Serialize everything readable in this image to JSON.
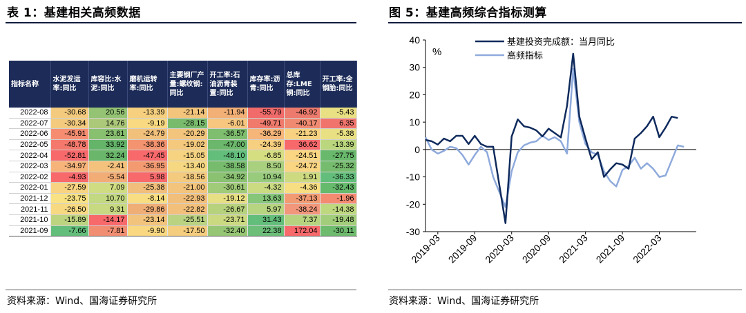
{
  "left": {
    "title": "表 1：基建相关高频数据",
    "source": "资料来源：Wind、国海证券研究所",
    "table": {
      "headers": [
        "指标名称",
        "水泥发运率:同比",
        "库容比:水泥:同比",
        "磨机运转率:同比",
        "主要钢厂产量:螺纹钢:同比",
        "开工率:石油沥青装置:同比",
        "库存率:沥青:同比",
        "总库存:LME铜:同比",
        "开工率:全钢胎:同比"
      ],
      "rows": [
        {
          "date": "2022-08",
          "values": [
            "-30.68",
            "20.56",
            "-13.39",
            "-21.14",
            "-11.94",
            "-55.79",
            "-46.92",
            "-5.43"
          ],
          "colors": [
            "#f4cb7e",
            "#93c373",
            "#f6d07f",
            "#f3c47c",
            "#f2af76",
            "#f06b6a",
            "#ec7b6d",
            "#e9e083"
          ]
        },
        {
          "date": "2022-07",
          "values": [
            "-30.34",
            "14.76",
            "-9.19",
            "-28.15",
            "-6.01",
            "-49.71",
            "-40.17",
            "6.35"
          ],
          "colors": [
            "#f4cb7e",
            "#acc97a",
            "#f9d981",
            "#79bb6d",
            "#f7c67f",
            "#f07b6d",
            "#f08a70",
            "#f0746c"
          ]
        },
        {
          "date": "2022-06",
          "values": [
            "-45.91",
            "23.61",
            "-24.79",
            "-20.29",
            "-36.57",
            "-36.29",
            "-21.23",
            "-5.38"
          ],
          "colors": [
            "#f68d71",
            "#89c070",
            "#f1c07b",
            "#f3c57c",
            "#7ebe6e",
            "#f6b579",
            "#f8d280",
            "#e9e083"
          ]
        },
        {
          "date": "2022-05",
          "values": [
            "-48.78",
            "33.92",
            "-38.36",
            "-19.02",
            "-47.00",
            "-24.39",
            "36.62",
            "-13.39"
          ],
          "colors": [
            "#f4796c",
            "#64b469",
            "#f3936f",
            "#f4c97d",
            "#6bb76b",
            "#f7cf80",
            "#f8696b",
            "#bad77e"
          ]
        },
        {
          "date": "2022-04",
          "values": [
            "-52.81",
            "32.24",
            "-47.45",
            "-15.05",
            "-48.10",
            "-6.85",
            "-24.51",
            "-27.75"
          ],
          "colors": [
            "#f8696b",
            "#6ab66a",
            "#f8696b",
            "#f6d381",
            "#63be7b",
            "#d6de82",
            "#fad582",
            "#69b96c"
          ]
        },
        {
          "date": "2022-03",
          "values": [
            "-34.97",
            "-2.41",
            "-36.95",
            "-13.40",
            "-38.58",
            "8.50",
            "-24.72",
            "-25.32"
          ],
          "colors": [
            "#f6b37a",
            "#f4c27d",
            "#f49a71",
            "#f6d782",
            "#77bc6d",
            "#a8d07e",
            "#fad582",
            "#76bc6e"
          ]
        },
        {
          "date": "2022-02",
          "values": [
            "-4.93",
            "-5.54",
            "5.98",
            "-18.56",
            "-34.92",
            "10.94",
            "1.91",
            "-36.33"
          ],
          "colors": [
            "#f8696b",
            "#f2ac76",
            "#f8696b",
            "#f4ca7e",
            "#8ac271",
            "#98cb7c",
            "#cdda80",
            "#63be7b"
          ]
        },
        {
          "date": "2022-01",
          "values": [
            "-27.59",
            "7.09",
            "-25.38",
            "-21.00",
            "-30.61",
            "-4.32",
            "-4.36",
            "-32.43"
          ],
          "colors": [
            "#f8d482",
            "#d0dc82",
            "#f1be7b",
            "#f3c47c",
            "#a0cb78",
            "#cbdb82",
            "#f8de82",
            "#66ba6c"
          ]
        },
        {
          "date": "2021-12",
          "values": [
            "-23.75",
            "10.70",
            "-8.14",
            "-22.93",
            "-19.12",
            "13.63",
            "-37.13",
            "-1.96"
          ],
          "colors": [
            "#f8e283",
            "#c2d881",
            "#f9dd82",
            "#f2bf7b",
            "#e6df83",
            "#85c679",
            "#f29b73",
            "#f48a70"
          ]
        },
        {
          "date": "2021-11",
          "values": [
            "-26.50",
            "9.31",
            "-29.86",
            "-22.82",
            "-26.67",
            "5.97",
            "-38.24",
            "-14.38"
          ],
          "colors": [
            "#f7d982",
            "#c7d981",
            "#f0ae77",
            "#f2c07b",
            "#b7d27d",
            "#b7d480",
            "#f2977b",
            "#bed87f"
          ]
        },
        {
          "date": "2021-10",
          "values": [
            "-15.89",
            "-14.17",
            "-23.14",
            "-25.51",
            "-23.71",
            "31.43",
            "7.37",
            "-19.48"
          ],
          "colors": [
            "#bcd480",
            "#f8696b",
            "#f2c37c",
            "#bad383",
            "#cbd981",
            "#63be7b",
            "#b6d47f",
            "#a2cd7a"
          ]
        },
        {
          "date": "2021-09",
          "values": [
            "-7.66",
            "-7.81",
            "-9.90",
            "-17.50",
            "-32.40",
            "22.38",
            "172.04",
            "-30.11"
          ],
          "colors": [
            "#63be7b",
            "#f18e72",
            "#f9d881",
            "#f5cd7e",
            "#96c674",
            "#6cbe79",
            "#f8696b",
            "#6ebb6e"
          ]
        }
      ]
    }
  },
  "right": {
    "title": "图 5：基建高频综合指标测算",
    "source": "资料来源：Wind、国海证券研究所"
  },
  "chart_data": {
    "type": "line",
    "unit_label": "%",
    "ylim": [
      -30,
      40
    ],
    "yticks": [
      -30,
      -20,
      -10,
      0,
      10,
      20,
      30,
      40
    ],
    "xlim": [
      "2019-01",
      "2022-09"
    ],
    "xtick_labels": [
      "2019-03",
      "2019-09",
      "2020-03",
      "2020-09",
      "2021-03",
      "2021-09",
      "2022-03"
    ],
    "grid": false,
    "legend_position": "top",
    "series": [
      {
        "name": "基建投资完成额：当月同比",
        "color": "#0f2a5c",
        "points": [
          [
            "2019-01",
            3.5
          ],
          [
            "2019-02",
            3.0
          ],
          [
            "2019-03",
            1.8
          ],
          [
            "2019-04",
            4.0
          ],
          [
            "2019-05",
            3.0
          ],
          [
            "2019-06",
            5.0
          ],
          [
            "2019-07",
            5.0
          ],
          [
            "2019-08",
            2.0
          ],
          [
            "2019-09",
            5.0
          ],
          [
            "2019-10",
            2.0
          ],
          [
            "2019-11",
            1.0
          ],
          [
            "2019-12",
            1.0
          ],
          [
            "2020-02",
            -26.9
          ],
          [
            "2020-03",
            4.7
          ],
          [
            "2020-04",
            11.0
          ],
          [
            "2020-05",
            8.5
          ],
          [
            "2020-06",
            8.0
          ],
          [
            "2020-07",
            7.0
          ],
          [
            "2020-08",
            4.8
          ],
          [
            "2020-09",
            7.6
          ],
          [
            "2020-10",
            6.0
          ],
          [
            "2020-11",
            4.4
          ],
          [
            "2020-12",
            16.0
          ],
          [
            "2021-01",
            35.0
          ],
          [
            "2021-02",
            12.0
          ],
          [
            "2021-03",
            4.0
          ],
          [
            "2021-04",
            -3.5
          ],
          [
            "2021-05",
            -1.0
          ],
          [
            "2021-06",
            -10.0
          ],
          [
            "2021-07",
            -7.3
          ],
          [
            "2021-08",
            -5.0
          ],
          [
            "2021-09",
            -5.5
          ],
          [
            "2021-10",
            -7.0
          ],
          [
            "2021-11",
            4.0
          ],
          [
            "2021-12",
            6.0
          ],
          [
            "2022-01",
            8.5
          ],
          [
            "2022-02",
            12.0
          ],
          [
            "2022-03",
            4.5
          ],
          [
            "2022-04",
            8.0
          ],
          [
            "2022-05",
            12.0
          ],
          [
            "2022-06",
            11.5
          ]
        ]
      },
      {
        "name": "高频指标",
        "color": "#8faadc",
        "points": [
          [
            "2019-01",
            4.5
          ],
          [
            "2019-02",
            0.0
          ],
          [
            "2019-03",
            -1.5
          ],
          [
            "2019-04",
            -0.5
          ],
          [
            "2019-05",
            1.0
          ],
          [
            "2019-06",
            0.5
          ],
          [
            "2019-07",
            -2.0
          ],
          [
            "2019-08",
            -5.5
          ],
          [
            "2019-09",
            -2.0
          ],
          [
            "2019-10",
            1.0
          ],
          [
            "2019-11",
            -1.0
          ],
          [
            "2019-12",
            -10.0
          ],
          [
            "2020-02",
            -21.0
          ],
          [
            "2020-03",
            -8.0
          ],
          [
            "2020-04",
            -1.0
          ],
          [
            "2020-05",
            1.5
          ],
          [
            "2020-06",
            2.5
          ],
          [
            "2020-07",
            3.0
          ],
          [
            "2020-08",
            5.0
          ],
          [
            "2020-09",
            3.5
          ],
          [
            "2020-10",
            4.5
          ],
          [
            "2020-11",
            3.0
          ],
          [
            "2020-12",
            -1.5
          ],
          [
            "2021-01",
            29.5
          ],
          [
            "2021-02",
            10.0
          ],
          [
            "2021-03",
            2.0
          ],
          [
            "2021-04",
            -1.0
          ],
          [
            "2021-05",
            -2.0
          ],
          [
            "2021-06",
            -8.0
          ],
          [
            "2021-07",
            -11.5
          ],
          [
            "2021-08",
            -13.5
          ],
          [
            "2021-09",
            -7.5
          ],
          [
            "2021-10",
            -6.0
          ],
          [
            "2021-11",
            -3.0
          ],
          [
            "2021-12",
            -7.0
          ],
          [
            "2022-01",
            -5.0
          ],
          [
            "2022-02",
            -7.0
          ],
          [
            "2022-03",
            -10.0
          ],
          [
            "2022-04",
            -9.5
          ],
          [
            "2022-05",
            -4.0
          ],
          [
            "2022-06",
            1.5
          ],
          [
            "2022-07",
            1.0
          ]
        ]
      }
    ]
  }
}
